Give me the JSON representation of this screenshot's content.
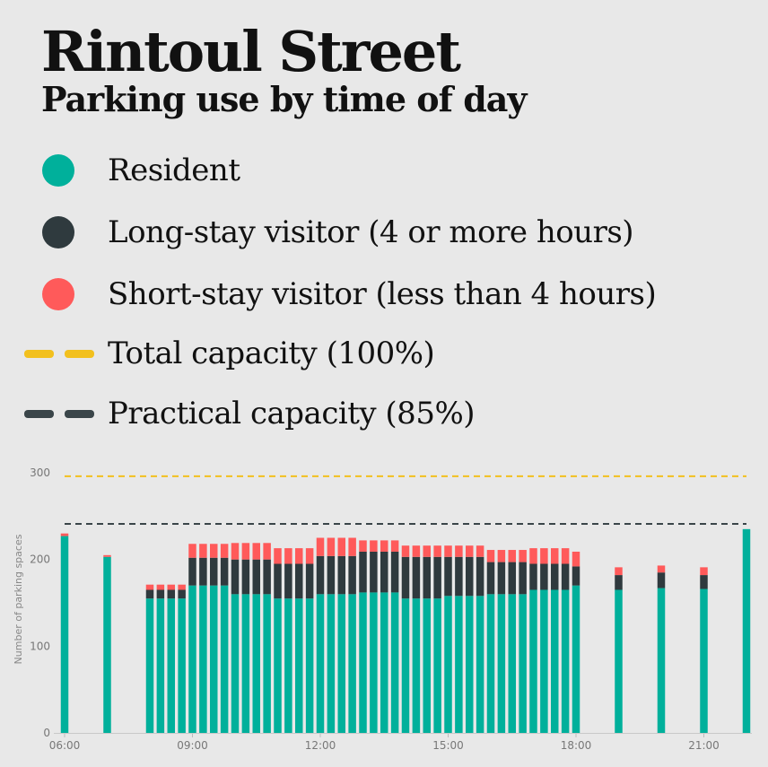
{
  "header": {
    "title": "Rintoul Street",
    "subtitle": "Parking use by time of day"
  },
  "legend": {
    "items": [
      {
        "label": "Resident",
        "kind": "dot",
        "color": "#00b09b"
      },
      {
        "label": "Long-stay visitor (4 or more hours)",
        "kind": "dot",
        "color": "#2f3a3e"
      },
      {
        "label": "Short-stay visitor (less than 4 hours)",
        "kind": "dot",
        "color": "#ff5a5a"
      },
      {
        "label": "Total capacity (100%)",
        "kind": "dash",
        "color": "#f2c01e"
      },
      {
        "label": "Practical capacity (85%)",
        "kind": "dash",
        "color": "#3a4549"
      }
    ]
  },
  "chart_data": {
    "type": "bar",
    "stacked": true,
    "ylabel": "Number of parking spaces",
    "ylim": [
      0,
      300
    ],
    "yticks": [
      0,
      100,
      200,
      300
    ],
    "xlim": [
      "06:00",
      "22:00"
    ],
    "xticks": [
      "06:00",
      "09:00",
      "12:00",
      "15:00",
      "18:00",
      "21:00"
    ],
    "total_capacity": 296,
    "practical_capacity": 241,
    "colors": {
      "resident": "#00b09b",
      "long_stay": "#2f3a3e",
      "short_stay": "#ff5a5a",
      "total_capacity": "#f2c01e",
      "practical_capacity": "#3a4549"
    },
    "x": [
      "06:00",
      "07:00",
      "08:00",
      "08:15",
      "08:30",
      "08:45",
      "09:00",
      "09:15",
      "09:30",
      "09:45",
      "10:00",
      "10:15",
      "10:30",
      "10:45",
      "11:00",
      "11:15",
      "11:30",
      "11:45",
      "12:00",
      "12:15",
      "12:30",
      "12:45",
      "13:00",
      "13:15",
      "13:30",
      "13:45",
      "14:00",
      "14:15",
      "14:30",
      "14:45",
      "15:00",
      "15:15",
      "15:30",
      "15:45",
      "16:00",
      "16:15",
      "16:30",
      "16:45",
      "17:00",
      "17:15",
      "17:30",
      "17:45",
      "18:00",
      "19:00",
      "20:00",
      "21:00",
      "22:00"
    ],
    "series": [
      {
        "key": "resident",
        "values": [
          227,
          203,
          155,
          155,
          155,
          155,
          170,
          170,
          170,
          170,
          160,
          160,
          160,
          160,
          155,
          155,
          155,
          155,
          160,
          160,
          160,
          160,
          162,
          162,
          162,
          162,
          155,
          155,
          155,
          155,
          158,
          158,
          158,
          158,
          160,
          160,
          160,
          160,
          165,
          165,
          165,
          165,
          170,
          165,
          167,
          166,
          235
        ]
      },
      {
        "key": "long_stay",
        "values": [
          0,
          0,
          10,
          10,
          10,
          10,
          32,
          32,
          32,
          32,
          40,
          40,
          40,
          40,
          40,
          40,
          40,
          40,
          44,
          44,
          44,
          44,
          47,
          47,
          47,
          47,
          48,
          48,
          48,
          48,
          45,
          45,
          45,
          45,
          37,
          37,
          37,
          37,
          30,
          30,
          30,
          30,
          22,
          17,
          18,
          16,
          0
        ]
      },
      {
        "key": "short_stay",
        "values": [
          3,
          2,
          6,
          6,
          6,
          6,
          16,
          16,
          16,
          16,
          19,
          19,
          19,
          19,
          18,
          18,
          18,
          18,
          21,
          21,
          21,
          21,
          13,
          13,
          13,
          13,
          13,
          13,
          13,
          13,
          13,
          13,
          13,
          13,
          14,
          14,
          14,
          14,
          18,
          18,
          18,
          18,
          17,
          9,
          8,
          9,
          0
        ]
      }
    ]
  }
}
